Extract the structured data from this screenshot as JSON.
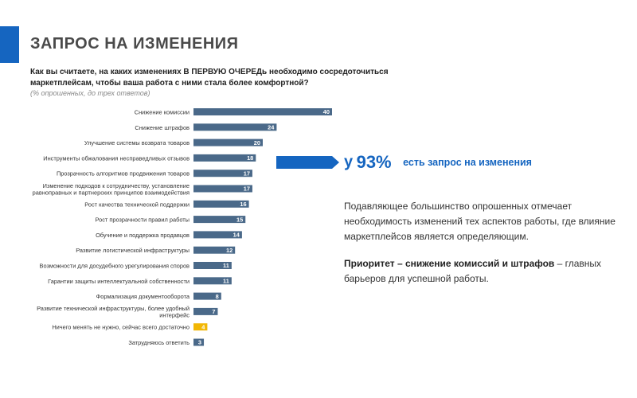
{
  "header": {
    "title": "ЗАПРОС НА ИЗМЕНЕНИЯ",
    "question": "Как вы считаете, на каких изменениях В ПЕРВУЮ ОЧЕРЕДь необходимо сосредоточиться маркетплейсам, чтобы ваша работа с ними стала более комфортной?",
    "note": "(% опрошенных, до трех ответов)"
  },
  "colors": {
    "accent": "#1565c0",
    "bar": "#4a6989",
    "highlight": "#f2b705",
    "arrow": "#1565c0"
  },
  "chart_data": {
    "type": "bar",
    "orientation": "horizontal",
    "categories": [
      "Снижение комиссии",
      "Снижение штрафов",
      "Улучшение системы возврата товаров",
      "Инструменты обжалования несправедливых отзывов",
      "Прозрачность алгоритмов продвижения товаров",
      "Изменение подходов к сотрудничеству, установление равноправных и партнерских принципов взаимодействия",
      "Рост качества технической поддержки",
      "Рост прозрачности правил работы",
      "Обучение и поддержка продавцов",
      "Развитие логистической инфраструктуры",
      "Возможности для досудебного урегулирования споров",
      "Гарантии защиты интеллектуальной собственности",
      "Формализация документооборота",
      "Развитие технической инфраструктуры, более удобный интерфейс",
      "Ничего менять не нужно, сейчас всего достаточно",
      "Затрудняюсь ответить"
    ],
    "values": [
      40,
      24,
      20,
      18,
      17,
      17,
      16,
      15,
      14,
      12,
      11,
      11,
      8,
      7,
      4,
      3
    ],
    "highlight_index": 14,
    "xlim": [
      0,
      40
    ]
  },
  "callout": {
    "prefix": "у",
    "value": "93%",
    "text": "есть запрос на изменения"
  },
  "paragraph1": "Подавляющее большинство опрошенных отмечает необходимость изменений тех аспектов работы, где влияние маркетплейсов является определяющим.",
  "paragraph2": {
    "bold": "Приоритет – снижение комиссий и штрафов",
    "rest": " – главных барьеров для успешной работы."
  }
}
